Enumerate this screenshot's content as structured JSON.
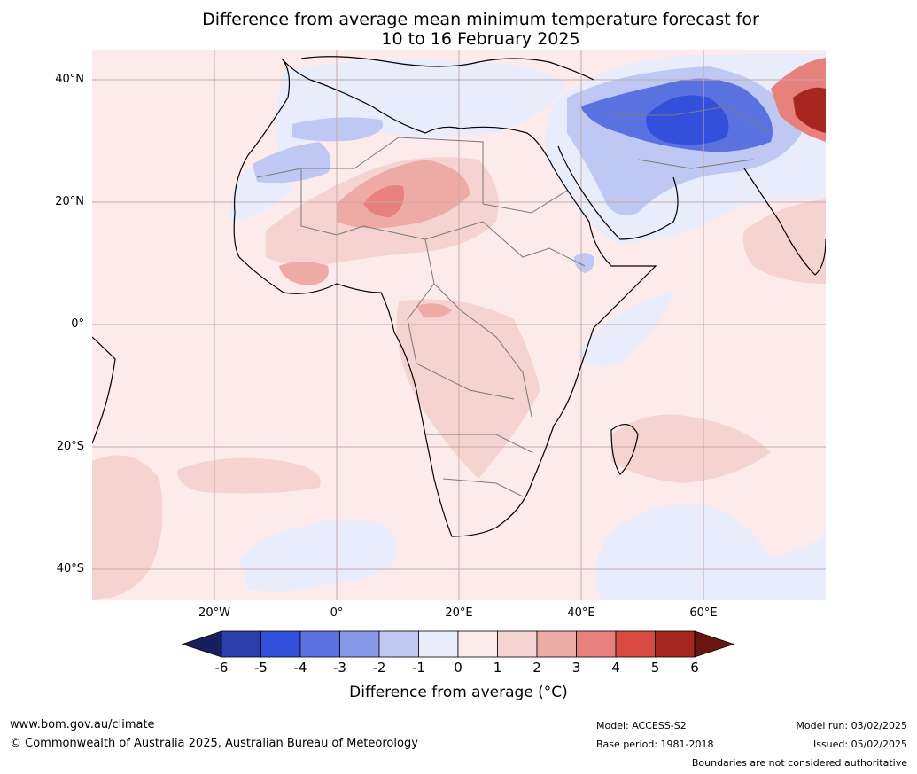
{
  "title": {
    "line1": "Difference from average mean minimum temperature forecast for",
    "line2": "10 to 16 February 2025"
  },
  "axes": {
    "lat_labels": [
      "40°N",
      "20°N",
      "0°",
      "20°S",
      "40°S"
    ],
    "lon_labels": [
      "20°W",
      "0°",
      "20°E",
      "40°E",
      "60°E"
    ]
  },
  "colorbar": {
    "label": "Difference from average (°C)",
    "ticks": [
      "-6",
      "-5",
      "-4",
      "-3",
      "-2",
      "-1",
      "0",
      "1",
      "2",
      "3",
      "4",
      "5",
      "6"
    ],
    "colors": [
      "#16205e",
      "#2a3fa9",
      "#3350dd",
      "#5a72e0",
      "#8898e8",
      "#bec8f2",
      "#e8ecfb",
      "#fcebea",
      "#f5d3d0",
      "#eeaaa5",
      "#e8817b",
      "#d94a42",
      "#a6271f",
      "#6b1510"
    ]
  },
  "footer": {
    "url": "www.bom.gov.au/climate",
    "copyright": "© Commonwealth of Australia 2025, Australian Bureau of Meteorology",
    "model": "Model: ACCESS-S2",
    "base_period": "Base period: 1981-2018",
    "model_run": "Model run: 03/02/2025",
    "issued": "Issued: 05/02/2025",
    "disclaimer": "Boundaries are not considered authoritative"
  }
}
